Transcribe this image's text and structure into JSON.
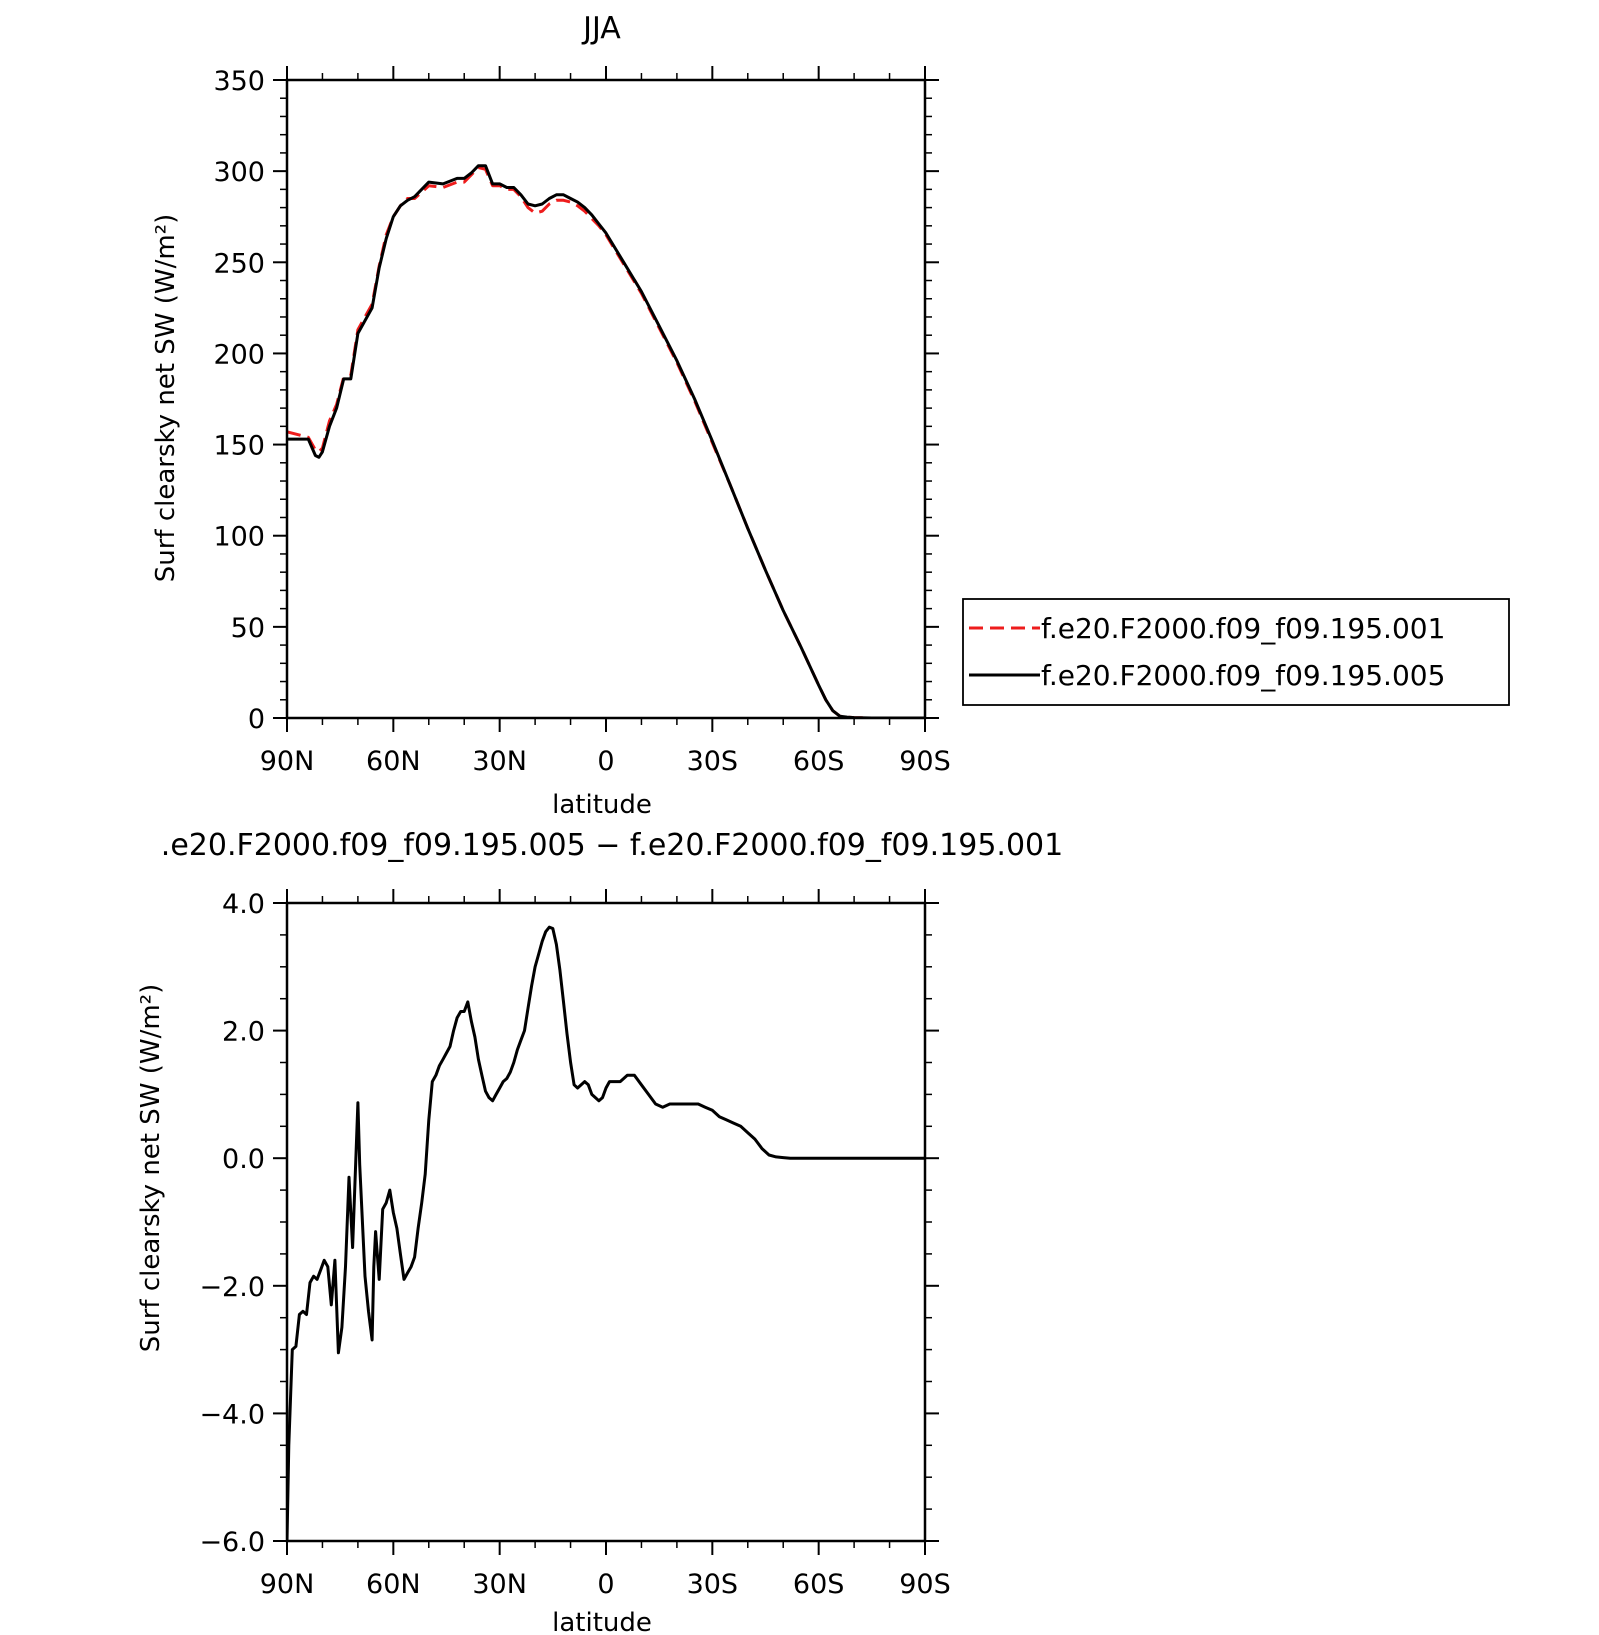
{
  "chart_data": [
    {
      "type": "line",
      "title": "JJA",
      "xlabel": "latitude",
      "ylabel": "Surf clearsky net SW (W/m²)",
      "xlim": [
        90,
        -90
      ],
      "ylim": [
        0,
        350
      ],
      "x_ticks": [
        {
          "value": 90,
          "label": "90N"
        },
        {
          "value": 60,
          "label": "60N"
        },
        {
          "value": 30,
          "label": "30N"
        },
        {
          "value": 0,
          "label": "0"
        },
        {
          "value": -30,
          "label": "30S"
        },
        {
          "value": -60,
          "label": "60S"
        },
        {
          "value": -90,
          "label": "90S"
        }
      ],
      "y_ticks": [
        {
          "value": 0,
          "label": "0"
        },
        {
          "value": 50,
          "label": "50"
        },
        {
          "value": 100,
          "label": "100"
        },
        {
          "value": 150,
          "label": "150"
        },
        {
          "value": 200,
          "label": "200"
        },
        {
          "value": 250,
          "label": "250"
        },
        {
          "value": 300,
          "label": "300"
        },
        {
          "value": 350,
          "label": "350"
        }
      ],
      "legend": "right",
      "series": [
        {
          "name": "f.e20.F2000.f09_f09.195.001",
          "color": "#ee1c1c",
          "dash": "dashed",
          "x": [
            90,
            84,
            82,
            81,
            80,
            78,
            76,
            74,
            72,
            70,
            68,
            66,
            64,
            62,
            60,
            58,
            56,
            54,
            50,
            46,
            42,
            40,
            38,
            36,
            34,
            32,
            30,
            28,
            26,
            24,
            22,
            20,
            18,
            16,
            14,
            12,
            10,
            8,
            6,
            4,
            2,
            0,
            -5,
            -10,
            -15,
            -20,
            -25,
            -30,
            -35,
            -40,
            -45,
            -50,
            -55,
            -60,
            -62,
            -64,
            -66,
            -68,
            -70,
            -75,
            -80,
            -85,
            -90
          ],
          "y": [
            157,
            154,
            147,
            146,
            148,
            163,
            172,
            187,
            188,
            213,
            220,
            227,
            248,
            265,
            275,
            281,
            285,
            285,
            292,
            291,
            294,
            294,
            298,
            302,
            301,
            292,
            292,
            290,
            290,
            286,
            280,
            277,
            278,
            282,
            284,
            284,
            283,
            281,
            278,
            274,
            270,
            265,
            249,
            233,
            214,
            195,
            174,
            151,
            128,
            104,
            81,
            59,
            39,
            18,
            10,
            4,
            1,
            0.5,
            0.2,
            0,
            0,
            0,
            0
          ]
        },
        {
          "name": "f.e20.F2000.f09_f09.195.005",
          "color": "#000000",
          "dash": "solid",
          "x": [
            90,
            84,
            82,
            81,
            80,
            78,
            76,
            74,
            72,
            70,
            68,
            66,
            64,
            62,
            60,
            58,
            56,
            54,
            50,
            46,
            42,
            40,
            38,
            36,
            34,
            32,
            30,
            28,
            26,
            24,
            22,
            20,
            18,
            16,
            14,
            12,
            10,
            8,
            6,
            4,
            2,
            0,
            -5,
            -10,
            -15,
            -20,
            -25,
            -30,
            -35,
            -40,
            -45,
            -50,
            -55,
            -60,
            -62,
            -64,
            -66,
            -68,
            -70,
            -75,
            -80,
            -85,
            -90
          ],
          "y": [
            153,
            153,
            144,
            143,
            146,
            160,
            170,
            186,
            186,
            211,
            218,
            225,
            247,
            263,
            275,
            281,
            284,
            286,
            294,
            293,
            296,
            296,
            299,
            303,
            303,
            293,
            293,
            291,
            291,
            287,
            282,
            281,
            282,
            285,
            287,
            287,
            285,
            283,
            280,
            276,
            271,
            266,
            250,
            234,
            215,
            196,
            175,
            152,
            128,
            104,
            81,
            59,
            39,
            18,
            10,
            4,
            1,
            0.5,
            0.2,
            0,
            0,
            0,
            0
          ]
        }
      ]
    },
    {
      "type": "line",
      "title": ".e20.F2000.f09_f09.195.005 − f.e20.F2000.f09_f09.195.001",
      "xlabel": "latitude",
      "ylabel": "Surf clearsky net SW (W/m²)",
      "xlim": [
        90,
        -90
      ],
      "ylim": [
        -6.0,
        4.0
      ],
      "x_ticks": [
        {
          "value": 90,
          "label": "90N"
        },
        {
          "value": 60,
          "label": "60N"
        },
        {
          "value": 30,
          "label": "30N"
        },
        {
          "value": 0,
          "label": "0"
        },
        {
          "value": -30,
          "label": "30S"
        },
        {
          "value": -60,
          "label": "60S"
        },
        {
          "value": -90,
          "label": "90S"
        }
      ],
      "y_ticks": [
        {
          "value": -6,
          "label": "−6.0"
        },
        {
          "value": -4,
          "label": "−4.0"
        },
        {
          "value": -2,
          "label": "−2.0"
        },
        {
          "value": 0,
          "label": "0.0"
        },
        {
          "value": 2,
          "label": "2.0"
        },
        {
          "value": 4,
          "label": "4.0"
        }
      ],
      "series": [
        {
          "color": "#000000",
          "dash": "solid",
          "x": [
            90,
            89.5,
            88.5,
            87.5,
            86.5,
            85.5,
            84.5,
            83.5,
            82.5,
            81.5,
            80.5,
            79.5,
            78.5,
            77.5,
            76.5,
            75.5,
            74.5,
            73.5,
            72.5,
            71.5,
            70,
            69.5,
            68,
            67,
            66,
            65.5,
            65,
            64,
            63,
            62,
            61,
            60,
            59,
            58,
            57,
            56,
            55,
            54,
            53,
            52,
            51,
            50,
            49,
            48,
            47,
            46,
            45,
            44,
            43,
            42,
            41,
            40,
            39,
            38,
            37,
            36,
            35,
            34,
            33,
            32,
            31,
            30,
            29,
            28,
            27,
            26,
            25,
            24,
            23,
            22,
            21,
            20,
            19,
            18,
            17,
            16,
            15,
            14,
            13,
            12,
            11,
            10,
            9,
            8,
            7,
            6,
            5,
            4,
            3,
            2,
            1,
            0,
            -1,
            -2,
            -3,
            -4,
            -5,
            -6,
            -8,
            -10,
            -12,
            -14,
            -16,
            -18,
            -20,
            -22,
            -24,
            -26,
            -28,
            -30,
            -32,
            -34,
            -36,
            -38,
            -40,
            -42,
            -44,
            -46,
            -48,
            -50,
            -52,
            -54,
            -56,
            -58,
            -60,
            -62,
            -64,
            -66,
            -68,
            -70,
            -75,
            -80,
            -85,
            -90
          ],
          "y": [
            -6.0,
            -4.5,
            -3.0,
            -2.95,
            -2.45,
            -2.4,
            -2.45,
            -1.95,
            -1.85,
            -1.9,
            -1.75,
            -1.6,
            -1.7,
            -2.3,
            -1.6,
            -3.05,
            -2.65,
            -1.7,
            -0.3,
            -1.4,
            0.87,
            -0.1,
            -1.85,
            -2.4,
            -2.85,
            -1.7,
            -1.15,
            -1.9,
            -0.8,
            -0.7,
            -0.5,
            -0.85,
            -1.1,
            -1.5,
            -1.9,
            -1.8,
            -1.7,
            -1.55,
            -1.1,
            -0.7,
            -0.25,
            0.6,
            1.2,
            1.3,
            1.45,
            1.55,
            1.65,
            1.75,
            2.0,
            2.2,
            2.3,
            2.3,
            2.45,
            2.15,
            1.9,
            1.55,
            1.3,
            1.05,
            0.95,
            0.9,
            1.0,
            1.1,
            1.2,
            1.25,
            1.35,
            1.5,
            1.7,
            1.85,
            2.0,
            2.35,
            2.7,
            3.0,
            3.2,
            3.4,
            3.55,
            3.62,
            3.6,
            3.35,
            2.95,
            2.45,
            1.95,
            1.5,
            1.15,
            1.1,
            1.15,
            1.2,
            1.15,
            1.0,
            0.95,
            0.9,
            0.95,
            1.1,
            1.2,
            1.2,
            1.2,
            1.2,
            1.25,
            1.3,
            1.3,
            1.15,
            1.0,
            0.85,
            0.8,
            0.85,
            0.85,
            0.85,
            0.85,
            0.85,
            0.8,
            0.75,
            0.65,
            0.6,
            0.55,
            0.5,
            0.4,
            0.3,
            0.15,
            0.05,
            0.02,
            0.01,
            0.0,
            0.0,
            0.0,
            0.0,
            0.0,
            0.0,
            0.0,
            0.0,
            0.0,
            0.0,
            0.0,
            0.0,
            0.0,
            0.0
          ]
        }
      ]
    }
  ]
}
